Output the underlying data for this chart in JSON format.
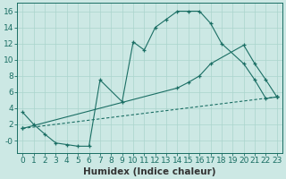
{
  "xlabel": "Humidex (Indice chaleur)",
  "bg_color": "#cce8e4",
  "line_color": "#1a6e64",
  "grid_color": "#aad4cc",
  "xlim": [
    -0.5,
    23.5
  ],
  "ylim": [
    -1.5,
    17.0
  ],
  "xticks": [
    0,
    1,
    2,
    3,
    4,
    5,
    6,
    7,
    8,
    9,
    10,
    11,
    12,
    13,
    14,
    15,
    16,
    17,
    18,
    19,
    20,
    21,
    22,
    23
  ],
  "yticks": [
    0,
    2,
    4,
    6,
    8,
    10,
    12,
    14,
    16
  ],
  "ytick_labels": [
    "-0",
    "2",
    "4",
    "6",
    "8",
    "10",
    "12",
    "14",
    "16"
  ],
  "line1_x": [
    0,
    1,
    2,
    3,
    4,
    5,
    6,
    7,
    9,
    10,
    11,
    12,
    13,
    14,
    15,
    16,
    17,
    18,
    20,
    21,
    22,
    23
  ],
  "line1_y": [
    3.5,
    2.0,
    0.8,
    -0.3,
    -0.5,
    -0.7,
    -0.7,
    7.5,
    4.8,
    12.2,
    11.2,
    14.0,
    15.0,
    16.0,
    16.0,
    16.0,
    14.5,
    12.0,
    9.5,
    7.5,
    5.2,
    5.4
  ],
  "line2_x": [
    0,
    23
  ],
  "line2_y": [
    1.5,
    5.4
  ],
  "line3_x": [
    0,
    14,
    15,
    16,
    17,
    20,
    21,
    22,
    23
  ],
  "line3_y": [
    1.5,
    6.5,
    7.2,
    8.0,
    9.5,
    11.8,
    9.5,
    7.5,
    5.4
  ],
  "xlabel_fontsize": 7.5,
  "tick_fontsize": 6.5
}
